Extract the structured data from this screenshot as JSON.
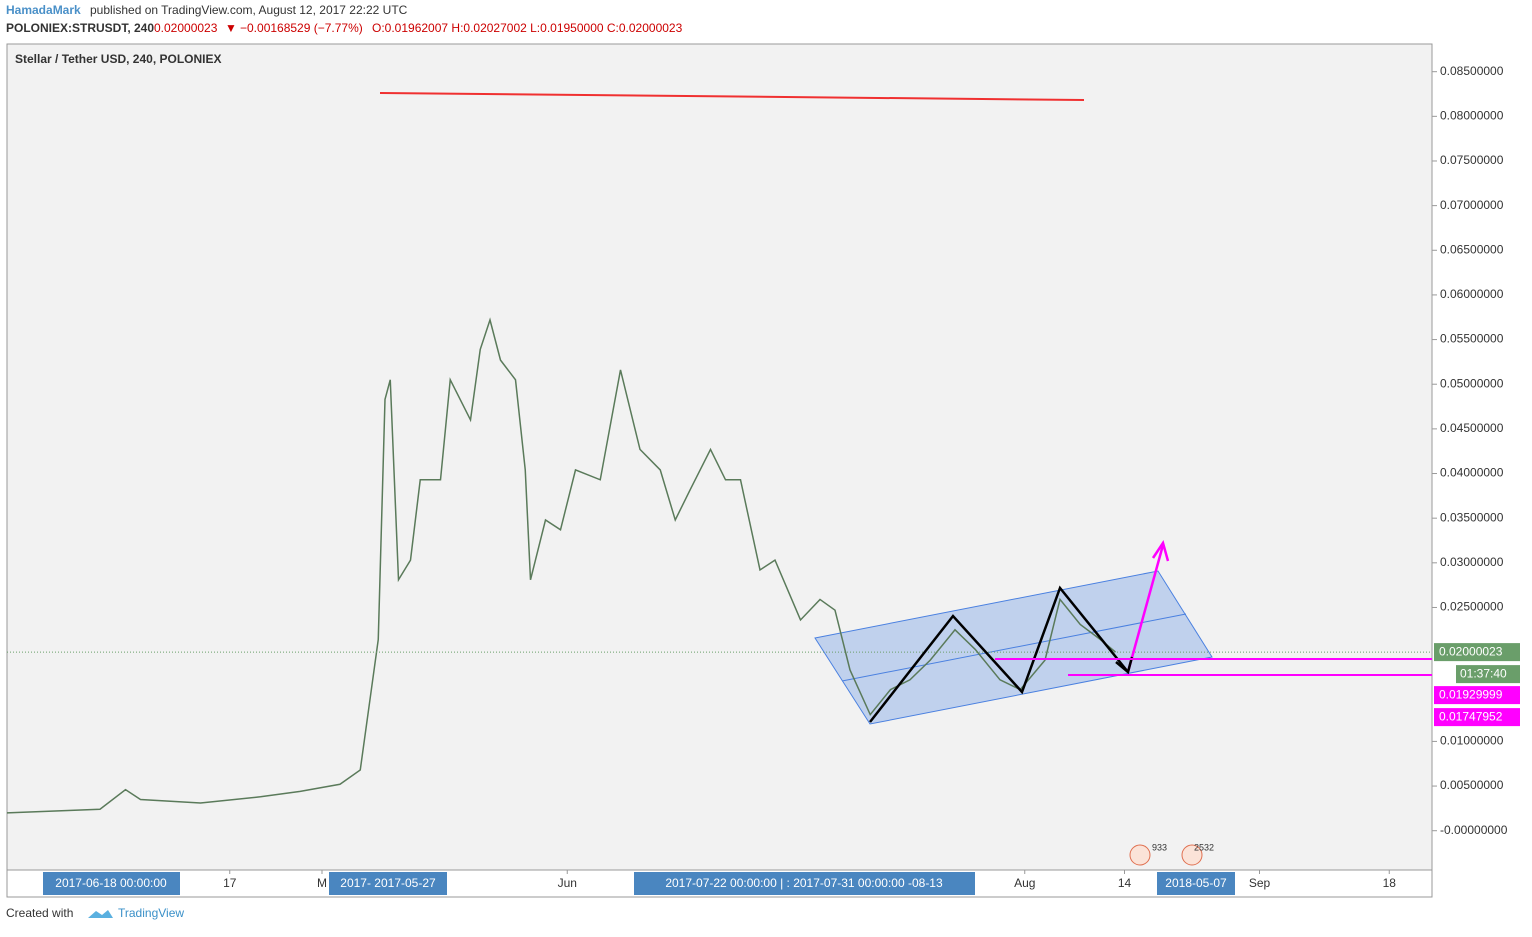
{
  "header": {
    "author": "HamadaMark",
    "published": "published on TradingView.com, August 12, 2017 22:22 UTC",
    "symbol": "POLONIEX:STRUSDT, 240",
    "last": "0.02000023",
    "arrow": "▼",
    "change": "−0.00168529 (−7.77%)",
    "ohlc": "O:0.01962007 H:0.02027002 L:0.01950000 C:0.02000023"
  },
  "chart_data": {
    "type": "line",
    "title": "Stellar / Tether USD, 240, POLONIEX",
    "color": "#5a7a5a",
    "x": [
      -74.7,
      -62.3,
      -58.9,
      -56.9,
      -48.9,
      -40.9,
      -35.6,
      -30.3,
      -27.6,
      -26.3,
      -25.2,
      -24.3,
      -23.6,
      -22.5,
      -20.9,
      -19.6,
      -16.9,
      -15.6,
      -12.9,
      -11.6,
      -10.3,
      -8.9,
      -6.9,
      -5.6,
      -4.9,
      -2.9,
      -0.9,
      1.1,
      4.4,
      7.1,
      9.7,
      12.4,
      14.4,
      16.4,
      19.1,
      21.1,
      23.1,
      25.7,
      27.7,
      31.1,
      33.7,
      35.7,
      37.7,
      40.4,
      43.1,
      45.7,
      48.4,
      51.7,
      54.4,
      57.7,
      60.4,
      63.7,
      65.7,
      68.4,
      71.1,
      73.1
    ],
    "values": [
      0.002,
      0.0024,
      0.0046,
      0.0035,
      0.0031,
      0.0038,
      0.0044,
      0.0052,
      0.0068,
      0.0147,
      0.0214,
      0.0483,
      0.0505,
      0.0281,
      0.0303,
      0.0393,
      0.0393,
      0.0505,
      0.046,
      0.0539,
      0.0572,
      0.0527,
      0.0505,
      0.0404,
      0.0281,
      0.0348,
      0.0337,
      0.0404,
      0.0393,
      0.0516,
      0.0427,
      0.0404,
      0.0348,
      0.0382,
      0.0427,
      0.0393,
      0.0393,
      0.0292,
      0.0303,
      0.0236,
      0.0259,
      0.0247,
      0.018,
      0.013,
      0.0158,
      0.0169,
      0.0191,
      0.0225,
      0.0203,
      0.0169,
      0.0158,
      0.0191,
      0.0259,
      0.0231,
      0.0214,
      0.02
    ],
    "xlim": [
      -74.7,
      115.3
    ],
    "xticks": [
      {
        "value": -45,
        "label": "17"
      },
      {
        "value": -32.7,
        "label": "M"
      },
      {
        "value": 0,
        "label": "Jun"
      },
      {
        "value": 61,
        "label": "Aug"
      },
      {
        "value": 74.3,
        "label": "14"
      },
      {
        "value": 92.3,
        "label": "Sep"
      },
      {
        "value": 109.6,
        "label": "18"
      }
    ],
    "ylim": [
      -0.0044,
      0.0881
    ],
    "yticks": [
      {
        "value": 0,
        "label": "-0.00000000"
      },
      {
        "value": 0.005,
        "label": "0.00500000"
      },
      {
        "value": 0.01,
        "label": "0.01000000"
      },
      {
        "value": 0.025,
        "label": "0.02500000"
      },
      {
        "value": 0.03,
        "label": "0.03000000"
      },
      {
        "value": 0.035,
        "label": "0.03500000"
      },
      {
        "value": 0.04,
        "label": "0.04000000"
      },
      {
        "value": 0.045,
        "label": "0.04500000"
      },
      {
        "value": 0.05,
        "label": "0.05000000"
      },
      {
        "value": 0.055,
        "label": "0.05500000"
      },
      {
        "value": 0.06,
        "label": "0.06000000"
      },
      {
        "value": 0.065,
        "label": "0.06500000"
      },
      {
        "value": 0.07,
        "label": "0.07000000"
      },
      {
        "value": 0.075,
        "label": "0.07500000"
      },
      {
        "value": 0.08,
        "label": "0.08000000"
      },
      {
        "value": 0.085,
        "label": "0.08500000"
      }
    ],
    "price_labels": [
      {
        "value": 0.02000023,
        "color": "#6a9e6a"
      },
      {
        "value": 0.01929999,
        "color": "#ff00ff"
      },
      {
        "value": 0.01747952,
        "color": "#ff00ff"
      }
    ],
    "countdown": "01:37:40",
    "date_highlights": [
      "2017-06-18 00:00:00",
      "2017- 2017-05-27",
      "2017-07-22 00:00:00 | : 2017-07-31 00:00:00 -08-13",
      "2018-05-07"
    ],
    "event_icons": [
      "933",
      "2532"
    ]
  },
  "footer": {
    "created": "Created with",
    "brand": "TradingView"
  }
}
